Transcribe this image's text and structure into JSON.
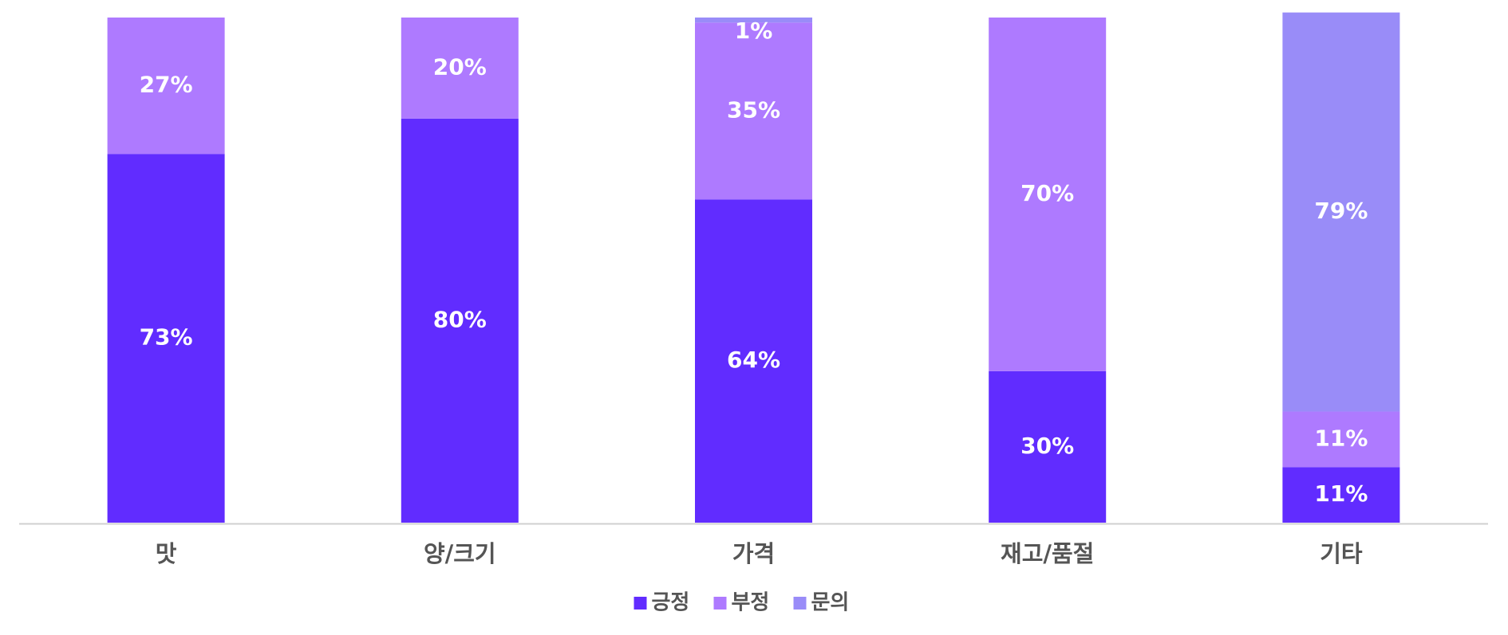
{
  "chart_data": {
    "type": "stacked-bar",
    "categories": [
      "맛",
      "양/크기",
      "가격",
      "재고/품절",
      "기타"
    ],
    "series": [
      {
        "name": "긍정",
        "color": "#612cff",
        "values": [
          73,
          80,
          64,
          30,
          11
        ],
        "value_labels": [
          "73%",
          "80%",
          "64%",
          "30%",
          "11%"
        ]
      },
      {
        "name": "부정",
        "color": "#ae7aff",
        "values": [
          27,
          20,
          35,
          70,
          11
        ],
        "value_labels": [
          "27%",
          "20%",
          "35%",
          "70%",
          "11%"
        ]
      },
      {
        "name": "문의",
        "color": "#998cf8",
        "values": [
          0,
          0,
          1,
          0,
          79
        ],
        "value_labels": [
          null,
          null,
          "1%",
          null,
          "79%"
        ]
      }
    ],
    "ylim": [
      0,
      100
    ],
    "legend": "bottom"
  }
}
